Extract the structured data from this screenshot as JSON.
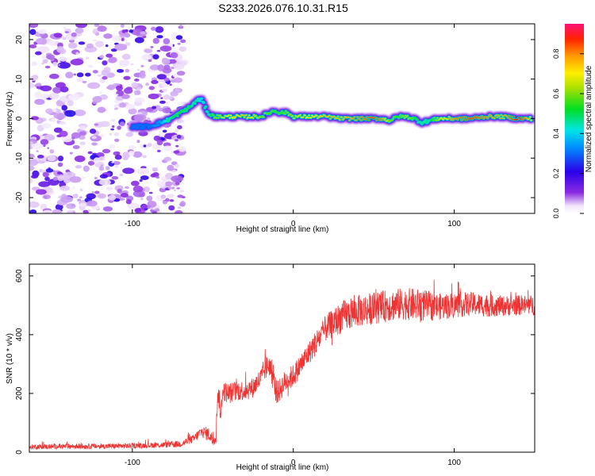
{
  "figure_title": "S233.2026.076.10.31.R15",
  "chart_data": [
    {
      "type": "heatmap",
      "xlabel": "Height of straight line (km)",
      "ylabel": "Frequency (Hz)",
      "xlim": [
        -164,
        150
      ],
      "ylim": [
        -24,
        24
      ],
      "xticks": [
        -100,
        0,
        100
      ],
      "yticks": [
        -20,
        -10,
        0,
        10,
        20
      ],
      "colorbar": {
        "label": "Normalized spectral amplitude",
        "range": [
          0,
          0.95
        ],
        "ticks": [
          0.0,
          0.2,
          0.4,
          0.6,
          0.8
        ]
      },
      "noise_region_km": [
        -164,
        -78
      ],
      "peak_ridge": {
        "x": [
          -100,
          -90,
          -82,
          -76,
          -72,
          -68,
          -64,
          -60,
          -57,
          -55,
          -52,
          -48,
          -40,
          -30,
          -20,
          -12,
          -8,
          -4,
          0,
          10,
          20,
          30,
          40,
          50,
          55,
          60,
          65,
          70,
          75,
          80,
          85,
          90,
          100,
          110,
          120,
          130,
          140,
          148
        ],
        "frequency_hz": [
          -2,
          -2,
          -1,
          0,
          1,
          2,
          3,
          4.5,
          5,
          3,
          1,
          0.5,
          0.5,
          0.5,
          0.5,
          2,
          1.5,
          1.5,
          0.5,
          0.5,
          0.5,
          0,
          0,
          0,
          0,
          -0.5,
          0.5,
          0.5,
          0,
          -1,
          -0.5,
          0,
          0,
          0,
          0.5,
          0.5,
          0,
          0
        ],
        "normalized_amplitude": [
          0.3,
          0.3,
          0.35,
          0.5,
          0.55,
          0.5,
          0.5,
          0.45,
          0.4,
          0.45,
          0.5,
          0.6,
          0.7,
          0.75,
          0.6,
          0.55,
          0.55,
          0.6,
          0.65,
          0.7,
          0.75,
          0.75,
          0.8,
          0.85,
          0.8,
          0.6,
          0.55,
          0.65,
          0.55,
          0.45,
          0.5,
          0.65,
          0.8,
          0.85,
          0.8,
          0.75,
          0.9,
          0.7
        ]
      }
    },
    {
      "type": "line",
      "xlabel": "Height of straight line (km)",
      "ylabel": "SNR (10 * v/v)",
      "xlim": [
        -164,
        150
      ],
      "ylim": [
        0,
        640
      ],
      "xticks": [
        -100,
        0,
        100
      ],
      "yticks": [
        0,
        200,
        400,
        600
      ],
      "series": [
        {
          "name": "SNR",
          "color": "#ee3333",
          "x": [
            -164,
            -140,
            -120,
            -100,
            -80,
            -70,
            -62,
            -57,
            -52,
            -50,
            -48,
            -47,
            -46,
            -45,
            -44,
            -40,
            -35,
            -30,
            -25,
            -22,
            -20,
            -18,
            -15,
            -12,
            -10,
            -5,
            0,
            5,
            10,
            15,
            20,
            25,
            30,
            40,
            50,
            60,
            70,
            80,
            90,
            100,
            110,
            120,
            130,
            140,
            150
          ],
          "y": [
            18,
            20,
            20,
            22,
            25,
            28,
            45,
            70,
            60,
            40,
            60,
            200,
            180,
            120,
            210,
            200,
            210,
            210,
            220,
            240,
            250,
            280,
            300,
            240,
            200,
            240,
            260,
            300,
            340,
            380,
            420,
            440,
            460,
            480,
            490,
            500,
            505,
            500,
            495,
            500,
            505,
            500,
            498,
            500,
            500
          ],
          "noise_amplitude": [
            8,
            9,
            9,
            9,
            10,
            12,
            15,
            20,
            25,
            25,
            30,
            35,
            35,
            35,
            35,
            35,
            35,
            35,
            35,
            35,
            40,
            40,
            40,
            40,
            40,
            40,
            40,
            40,
            40,
            45,
            45,
            50,
            55,
            55,
            55,
            55,
            55,
            55,
            45,
            45,
            40,
            40,
            35,
            35,
            35
          ]
        }
      ]
    }
  ]
}
